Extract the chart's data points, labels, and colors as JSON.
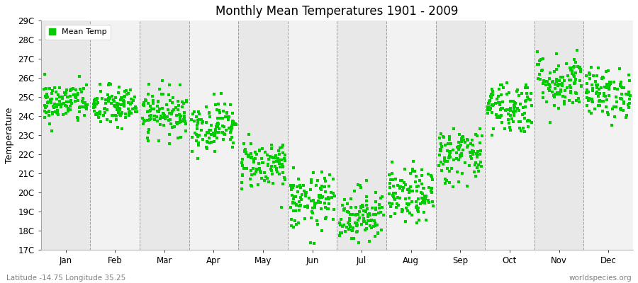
{
  "title": "Monthly Mean Temperatures 1901 - 2009",
  "ylabel": "Temperature",
  "subtitle": "Latitude -14.75 Longitude 35.25",
  "watermark": "worldspecies.org",
  "months": [
    "Jan",
    "Feb",
    "Mar",
    "Apr",
    "May",
    "Jun",
    "Jul",
    "Aug",
    "Sep",
    "Oct",
    "Nov",
    "Dec"
  ],
  "year_start": 1901,
  "year_end": 2009,
  "ylim": [
    17,
    29
  ],
  "yticks": [
    17,
    18,
    19,
    20,
    21,
    22,
    23,
    24,
    25,
    26,
    27,
    28,
    29
  ],
  "ytick_labels": [
    "17C",
    "18C",
    "19C",
    "20C",
    "21C",
    "22C",
    "23C",
    "24C",
    "25C",
    "26C",
    "27C",
    "28C",
    "29C"
  ],
  "dot_color": "#00CC00",
  "dot_size": 9,
  "background_color": "#FFFFFF",
  "band_color_dark": "#E8E8E8",
  "band_color_light": "#F2F2F2",
  "grid_color": "#666666",
  "mean_temps": [
    24.7,
    24.5,
    24.2,
    23.5,
    21.5,
    19.5,
    18.8,
    19.8,
    22.0,
    24.5,
    25.8,
    25.2
  ],
  "std_temps": [
    0.55,
    0.55,
    0.6,
    0.65,
    0.65,
    0.75,
    0.75,
    0.7,
    0.75,
    0.7,
    0.75,
    0.65
  ]
}
